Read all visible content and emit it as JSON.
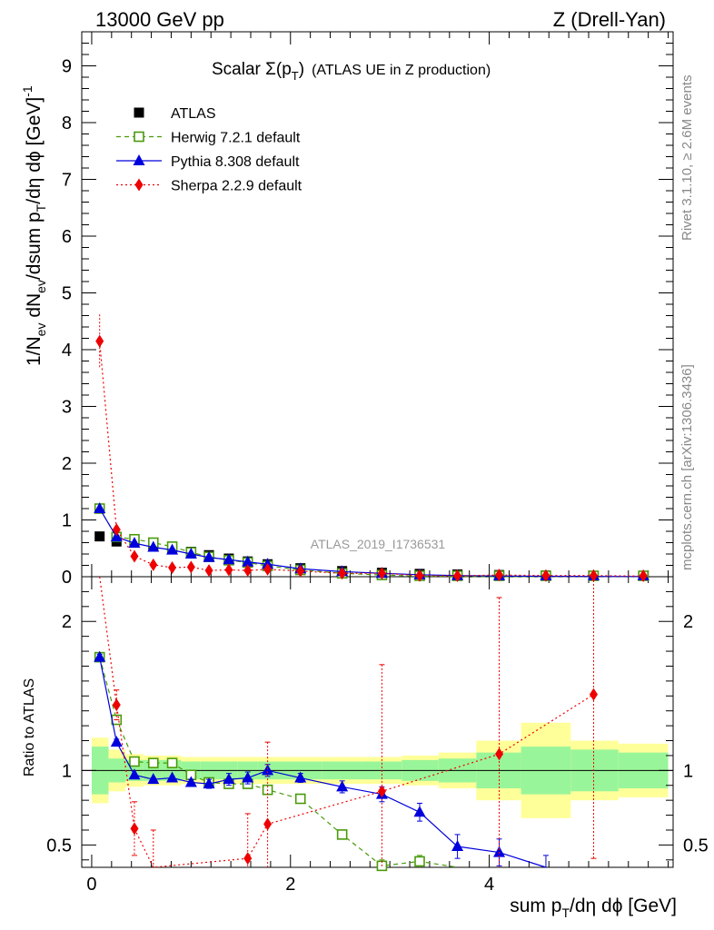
{
  "header": {
    "left": "13000 GeV pp",
    "right": "Z (Drell-Yan)"
  },
  "side_labels": {
    "rivet": "Rivet 3.1.10, ≥ 2.6M events",
    "mcplots": "mcplots.cern.ch [arXiv:1306.3436]"
  },
  "title": {
    "main": "Scalar Σ(p",
    "sub": "T",
    "close": ")",
    "extra": "(ATLAS UE in Z production)"
  },
  "watermark": "ATLAS_2019_I1736531",
  "ylabel_top": {
    "p1": "1/N",
    "s1": "ev",
    "p2": " dN",
    "s2": "ev",
    "p3": "/dsum p",
    "s3": "T",
    "p4": "/dη dϕ  [GeV]",
    "sup": "-1"
  },
  "ylabel_bottom": "Ratio to ATLAS",
  "xlabel": {
    "p1": "sum p",
    "s1": "T",
    "p2": "/dη dϕ [GeV]"
  },
  "legend": [
    {
      "label": "ATLAS",
      "color": "#000000",
      "marker": "square"
    },
    {
      "label": "Herwig 7.2.1 default",
      "color": "#4a9a0a",
      "marker": "open-square"
    },
    {
      "label": "Pythia 8.308 default",
      "color": "#0000dd",
      "marker": "triangle"
    },
    {
      "label": "Sherpa 2.2.9 default",
      "color": "#ee0000",
      "marker": "diamond"
    }
  ],
  "chart_data": [
    {
      "type": "line",
      "panel": "main",
      "xlim": [
        -0.1,
        5.85
      ],
      "ylim": [
        0,
        9.6
      ],
      "x_ticks": [
        0,
        2,
        4
      ],
      "y_ticks": [
        0,
        1,
        2,
        3,
        4,
        5,
        6,
        7,
        8,
        9
      ],
      "tick_labels_y": [
        "0",
        "1",
        "2",
        "3",
        "4",
        "5",
        "6",
        "7",
        "8",
        "9"
      ],
      "x": [
        0.08,
        0.25,
        0.43,
        0.62,
        0.81,
        1.0,
        1.18,
        1.38,
        1.57,
        1.77,
        2.1,
        2.52,
        2.92,
        3.3,
        3.68,
        4.1,
        4.57,
        5.05,
        5.55
      ],
      "series": [
        {
          "name": "ATLAS",
          "values": [
            0.71,
            0.62,
            0.6,
            0.56,
            0.5,
            0.44,
            0.38,
            0.32,
            0.27,
            0.22,
            0.15,
            0.1,
            0.07,
            0.05,
            0.04,
            0.03,
            0.02,
            0.015,
            0.01
          ]
        },
        {
          "name": "Herwig 7.2.1 default",
          "values": [
            1.2,
            0.7,
            0.66,
            0.6,
            0.53,
            0.43,
            0.35,
            0.29,
            0.25,
            0.19,
            0.12,
            0.06,
            0.03,
            0.01,
            0.005,
            0.003,
            0.002,
            0.001,
            0.001
          ]
        },
        {
          "name": "Pythia 8.308 default",
          "values": [
            1.2,
            0.7,
            0.59,
            0.52,
            0.47,
            0.4,
            0.34,
            0.3,
            0.26,
            0.22,
            0.14,
            0.09,
            0.06,
            0.035,
            0.02,
            0.013,
            0.008,
            0.005,
            0.003
          ]
        },
        {
          "name": "Sherpa 2.2.9 default",
          "values": [
            4.15,
            0.83,
            0.36,
            0.21,
            0.16,
            0.17,
            0.11,
            0.12,
            0.11,
            0.13,
            0.1,
            0.06,
            0.06,
            0.02,
            0.015,
            0.03,
            0.02,
            0.02,
            0.01
          ]
        }
      ]
    },
    {
      "type": "line",
      "panel": "ratio",
      "ylabel": "Ratio to ATLAS",
      "xlabel": "sum pT/dη dϕ [GeV]",
      "xlim": [
        -0.1,
        5.85
      ],
      "ylim": [
        0.35,
        2.3
      ],
      "x_ticks": [
        0,
        2,
        4
      ],
      "tick_labels_x": [
        "0",
        "2",
        "4"
      ],
      "y_ticks": [
        0.5,
        1,
        2
      ],
      "tick_labels_y": [
        "0.5",
        "1",
        "2"
      ],
      "bin_edges": [
        0.0,
        0.17,
        0.34,
        0.52,
        0.71,
        0.9,
        1.09,
        1.28,
        1.47,
        1.67,
        1.87,
        2.32,
        2.72,
        3.12,
        3.49,
        3.87,
        4.32,
        4.82,
        5.3,
        5.8
      ],
      "band_inner": [
        0.16,
        0.08,
        0.07,
        0.07,
        0.07,
        0.06,
        0.06,
        0.06,
        0.06,
        0.06,
        0.06,
        0.06,
        0.06,
        0.07,
        0.08,
        0.12,
        0.16,
        0.14,
        0.12
      ],
      "band_outer": [
        0.22,
        0.14,
        0.11,
        0.1,
        0.1,
        0.09,
        0.09,
        0.09,
        0.09,
        0.09,
        0.09,
        0.09,
        0.09,
        0.1,
        0.12,
        0.2,
        0.32,
        0.2,
        0.18
      ],
      "series": [
        {
          "name": "Herwig 7.2.1 default",
          "x": [
            0.08,
            0.25,
            0.43,
            0.62,
            0.81,
            1.0,
            1.18,
            1.38,
            1.57,
            1.77,
            2.1,
            2.52,
            2.92,
            3.3,
            3.68
          ],
          "values": [
            1.76,
            1.34,
            1.06,
            1.05,
            1.05,
            0.97,
            0.92,
            0.91,
            0.91,
            0.87,
            0.81,
            0.57,
            0.36,
            0.39,
            0.1
          ],
          "err": [
            0.03,
            0.03,
            0.01,
            0.01,
            0.01,
            0.01,
            0.01,
            0.01,
            0.01,
            0.01,
            0.01,
            0.02,
            0.04,
            0.04,
            0.05
          ]
        },
        {
          "name": "Pythia 8.308 default",
          "x": [
            0.08,
            0.25,
            0.43,
            0.62,
            0.81,
            1.0,
            1.18,
            1.38,
            1.57,
            1.77,
            2.1,
            2.52,
            2.92,
            3.3,
            3.68,
            4.1,
            4.57
          ],
          "values": [
            1.76,
            1.19,
            0.97,
            0.94,
            0.95,
            0.92,
            0.91,
            0.94,
            0.95,
            1.0,
            0.95,
            0.89,
            0.84,
            0.72,
            0.49,
            0.45,
            0.33
          ],
          "err": [
            0.02,
            0.02,
            0.01,
            0.01,
            0.01,
            0.02,
            0.03,
            0.04,
            0.04,
            0.04,
            0.03,
            0.04,
            0.05,
            0.06,
            0.08,
            0.09,
            0.1
          ]
        },
        {
          "name": "Sherpa 2.2.9 default",
          "x": [
            0.08,
            0.25,
            0.43,
            0.62,
            1.57,
            1.77,
            2.92,
            4.1,
            5.05
          ],
          "values": [
            4.15,
            1.44,
            0.61,
            0.3,
            0.41,
            0.64,
            0.86,
            1.11,
            1.51
          ],
          "err": [
            0.5,
            0.1,
            0.18,
            0.3,
            0.3,
            0.55,
            0.85,
            1.05,
            1.1
          ]
        }
      ]
    }
  ]
}
